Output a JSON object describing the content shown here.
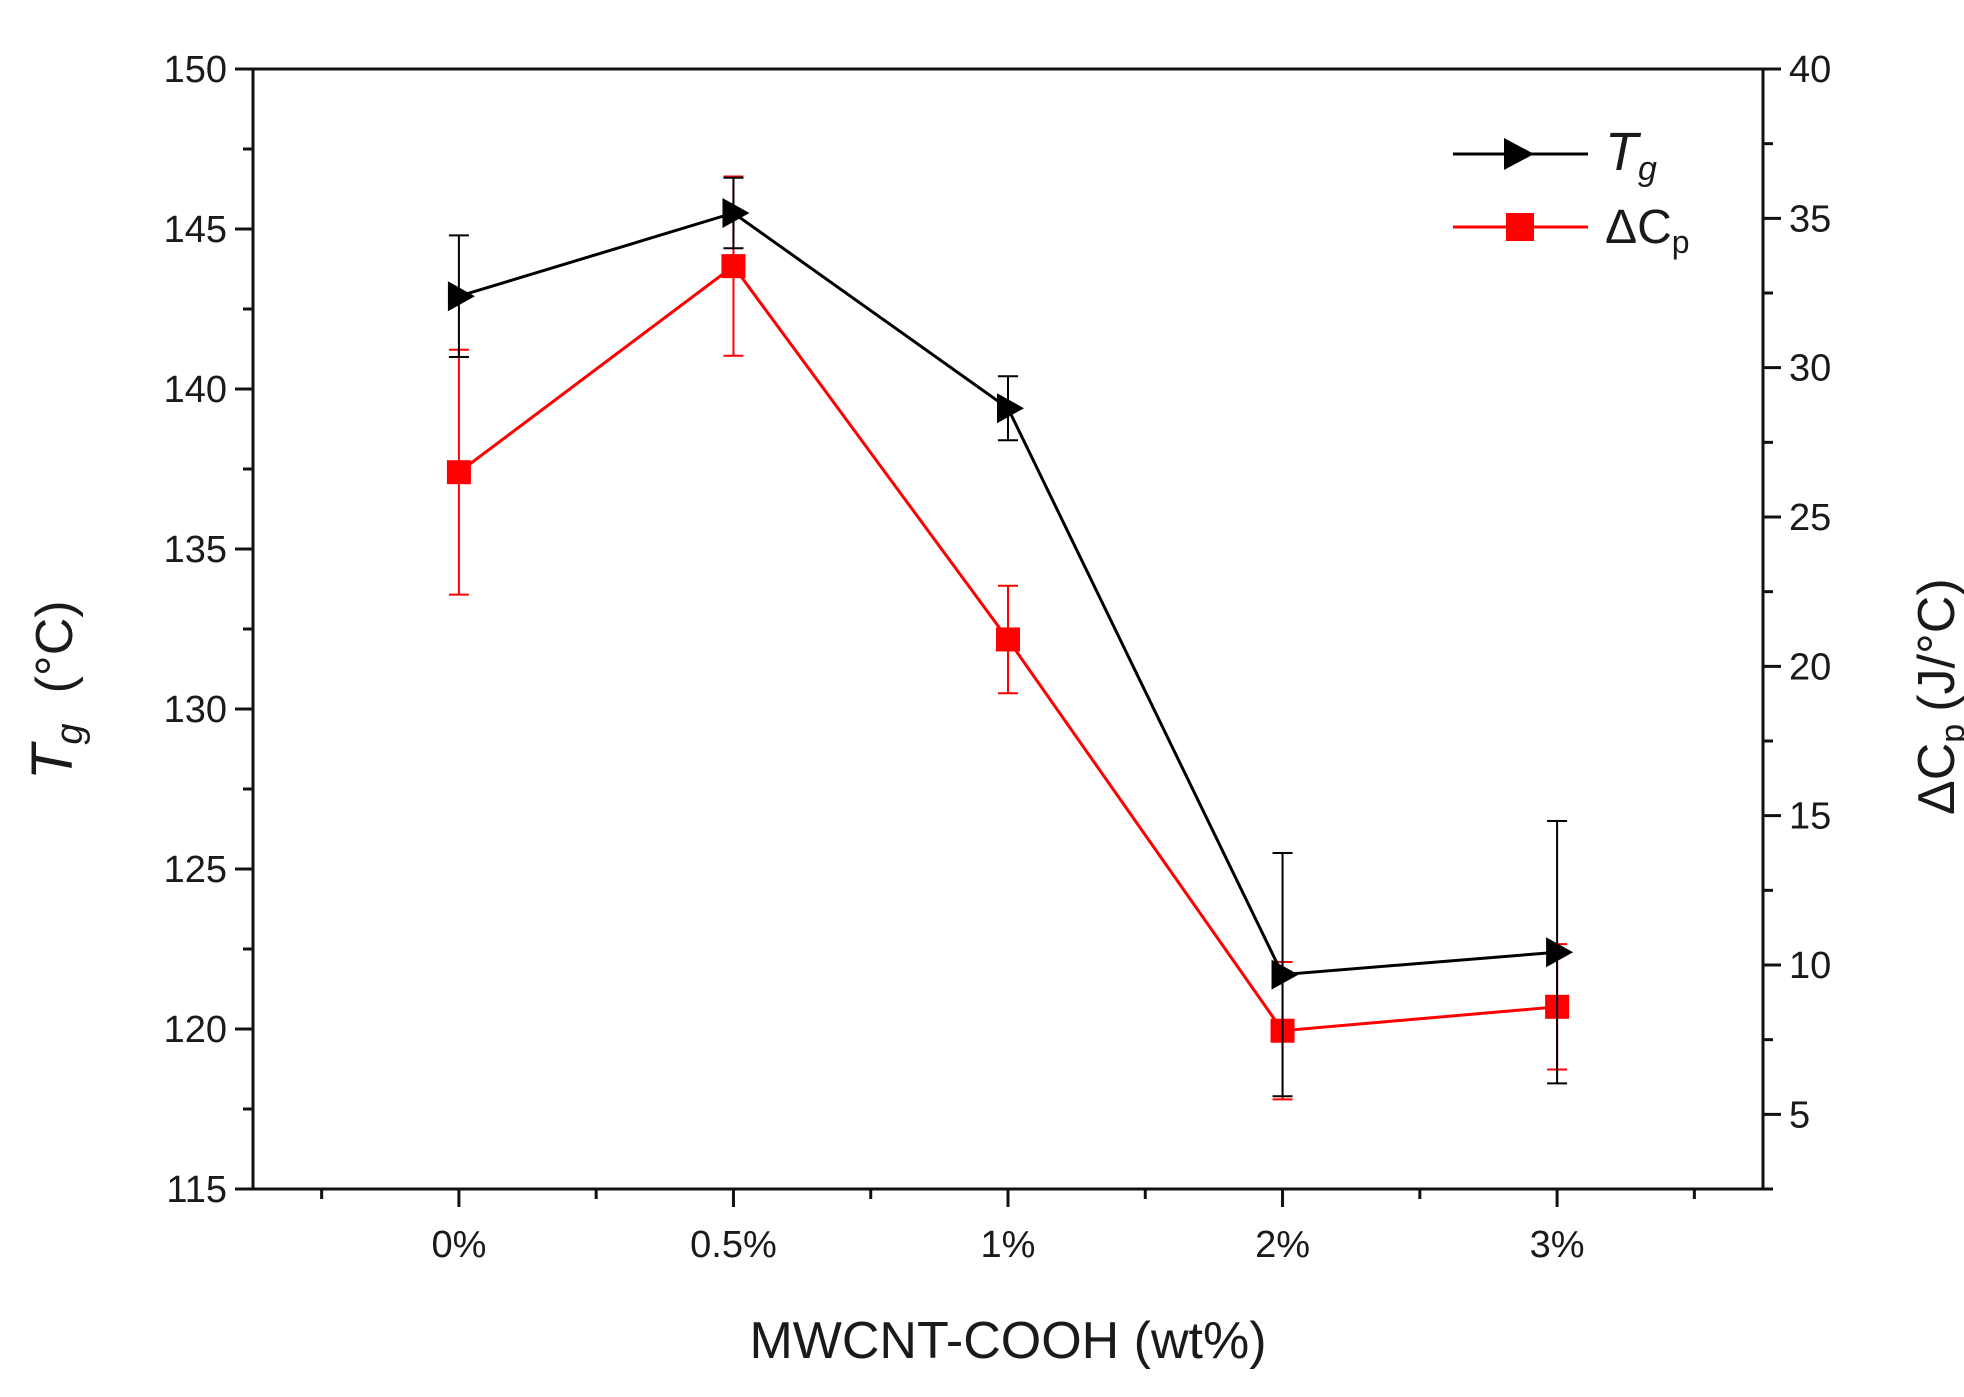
{
  "chart_data": {
    "type": "line",
    "categories": [
      "0%",
      "0.5%",
      "1%",
      "2%",
      "3%"
    ],
    "xlabel": "MWCNT-COOH (wt%)",
    "ylabel_left": {
      "symbol": "T",
      "subscript": "g",
      "unit": "(°C)"
    },
    "ylabel_right": {
      "symbol": "ΔC",
      "subscript": "p",
      "unit": "(J/°C)"
    },
    "ylim_left": [
      115,
      150
    ],
    "ylim_right": [
      2.5,
      40
    ],
    "yticks_left": [
      115,
      120,
      125,
      130,
      135,
      140,
      145,
      150
    ],
    "yticks_right": [
      5,
      10,
      15,
      20,
      25,
      30,
      35,
      40
    ],
    "grid": false,
    "legend_position": "top-right",
    "series": [
      {
        "key": "tg",
        "name": "T",
        "name_subscript": "g",
        "axis": "left",
        "color": "#000000",
        "marker": "triangle-right",
        "values": [
          142.9,
          145.5,
          139.4,
          121.7,
          122.4
        ],
        "errors": [
          1.9,
          1.1,
          1.0,
          3.8,
          4.1
        ]
      },
      {
        "key": "dcp",
        "name": "ΔC",
        "name_subscript": "p",
        "axis": "right",
        "color": "#ff0000",
        "marker": "square",
        "values": [
          26.5,
          33.4,
          20.9,
          7.8,
          8.6
        ],
        "errors": [
          4.1,
          3.0,
          1.8,
          2.3,
          2.1
        ]
      }
    ]
  }
}
